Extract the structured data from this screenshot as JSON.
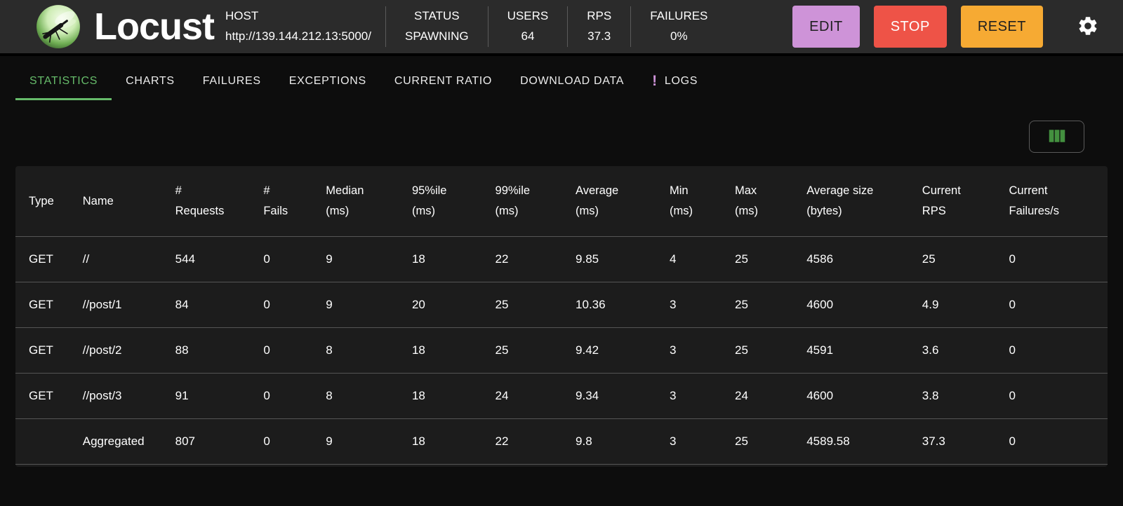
{
  "header": {
    "app_title": "Locust",
    "host_label": "HOST",
    "host_url": "http://139.144.212.13:5000/",
    "stats": [
      {
        "label": "STATUS",
        "value": "SPAWNING"
      },
      {
        "label": "USERS",
        "value": "64"
      },
      {
        "label": "RPS",
        "value": "37.3"
      },
      {
        "label": "FAILURES",
        "value": "0%"
      }
    ],
    "buttons": [
      {
        "id": "edit",
        "label": "EDIT",
        "bg": "#ce93d8",
        "fg": "#1f1f1f"
      },
      {
        "id": "stop",
        "label": "STOP",
        "bg": "#ee5347",
        "fg": "#ffffff"
      },
      {
        "id": "reset",
        "label": "RESET",
        "bg": "#f6aa33",
        "fg": "#1f1f1f"
      }
    ]
  },
  "tabs": [
    {
      "label": "STATISTICS",
      "active": true,
      "alert": false
    },
    {
      "label": "CHARTS",
      "active": false,
      "alert": false
    },
    {
      "label": "FAILURES",
      "active": false,
      "alert": false
    },
    {
      "label": "EXCEPTIONS",
      "active": false,
      "alert": false
    },
    {
      "label": "CURRENT RATIO",
      "active": false,
      "alert": false
    },
    {
      "label": "DOWNLOAD DATA",
      "active": false,
      "alert": false
    },
    {
      "label": "LOGS",
      "active": false,
      "alert": true
    }
  ],
  "stats_table": {
    "columns": [
      [
        "Type"
      ],
      [
        "Name"
      ],
      [
        "#",
        "Requests"
      ],
      [
        "#",
        "Fails"
      ],
      [
        "Median",
        "(ms)"
      ],
      [
        "95%ile",
        "(ms)"
      ],
      [
        "99%ile",
        "(ms)"
      ],
      [
        "Average",
        "(ms)"
      ],
      [
        "Min",
        "(ms)"
      ],
      [
        "Max",
        "(ms)"
      ],
      [
        "Average size",
        "(bytes)"
      ],
      [
        "Current",
        "RPS"
      ],
      [
        "Current",
        "Failures/s"
      ]
    ],
    "rows": [
      [
        "GET",
        "//",
        "544",
        "0",
        "9",
        "18",
        "22",
        "9.85",
        "4",
        "25",
        "4586",
        "25",
        "0"
      ],
      [
        "GET",
        "//post/1",
        "84",
        "0",
        "9",
        "20",
        "25",
        "10.36",
        "3",
        "25",
        "4600",
        "4.9",
        "0"
      ],
      [
        "GET",
        "//post/2",
        "88",
        "0",
        "8",
        "18",
        "25",
        "9.42",
        "3",
        "25",
        "4591",
        "3.6",
        "0"
      ],
      [
        "GET",
        "//post/3",
        "91",
        "0",
        "8",
        "18",
        "24",
        "9.34",
        "3",
        "24",
        "4600",
        "3.8",
        "0"
      ]
    ],
    "aggregated": [
      "",
      "Aggregated",
      "807",
      "0",
      "9",
      "18",
      "22",
      "9.8",
      "3",
      "25",
      "4589.58",
      "37.3",
      "0"
    ]
  },
  "colors": {
    "accent_green": "#66bb6a",
    "icon_green": "#43903f",
    "logs_alert_purple": "#ce93d8"
  }
}
